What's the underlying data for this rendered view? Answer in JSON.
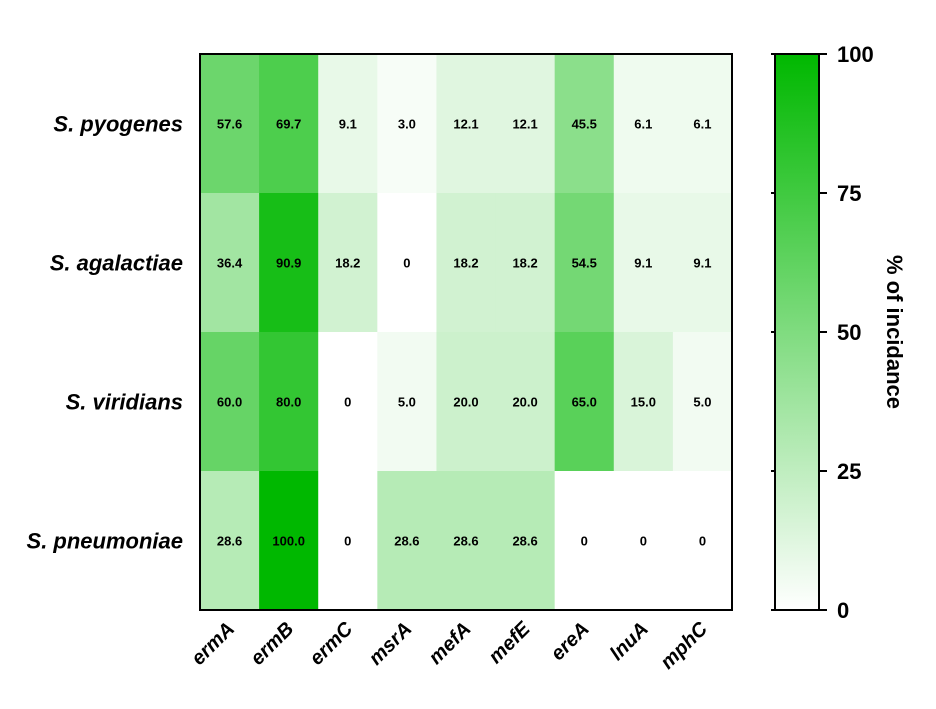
{
  "chart_data": {
    "type": "heatmap",
    "rows": [
      "S. pyogenes",
      "S. agalactiae",
      "S. viridians",
      "S. pneumoniae"
    ],
    "columns": [
      "ermA",
      "ermB",
      "ermC",
      "msrA",
      "mefA",
      "mefE",
      "ereA",
      "lnuA",
      "mphC"
    ],
    "values": [
      [
        57.6,
        69.7,
        9.1,
        3.0,
        12.1,
        12.1,
        45.5,
        6.1,
        6.1
      ],
      [
        36.4,
        90.9,
        18.2,
        0,
        18.2,
        18.2,
        54.5,
        9.1,
        9.1
      ],
      [
        60.0,
        80.0,
        0,
        5.0,
        20.0,
        20.0,
        65.0,
        15.0,
        5.0
      ],
      [
        28.6,
        100.0,
        0,
        28.6,
        28.6,
        28.6,
        0,
        0,
        0
      ]
    ],
    "value_labels": [
      [
        "57.6",
        "69.7",
        "9.1",
        "3.0",
        "12.1",
        "12.1",
        "45.5",
        "6.1",
        "6.1"
      ],
      [
        "36.4",
        "90.9",
        "18.2",
        "0",
        "18.2",
        "18.2",
        "54.5",
        "9.1",
        "9.1"
      ],
      [
        "60.0",
        "80.0",
        "0",
        "5.0",
        "20.0",
        "20.0",
        "65.0",
        "15.0",
        "5.0"
      ],
      [
        "28.6",
        "100.0",
        "0",
        "28.6",
        "28.6",
        "28.6",
        "0",
        "0",
        "0"
      ]
    ],
    "colorbar": {
      "label": "% of incidance",
      "range": [
        0,
        100
      ],
      "ticks": [
        0,
        25,
        50,
        75,
        100
      ],
      "tick_labels": [
        "0",
        "25",
        "50",
        "75",
        "100"
      ],
      "color_low": "#ffffff",
      "color_high": "#00b800"
    }
  }
}
